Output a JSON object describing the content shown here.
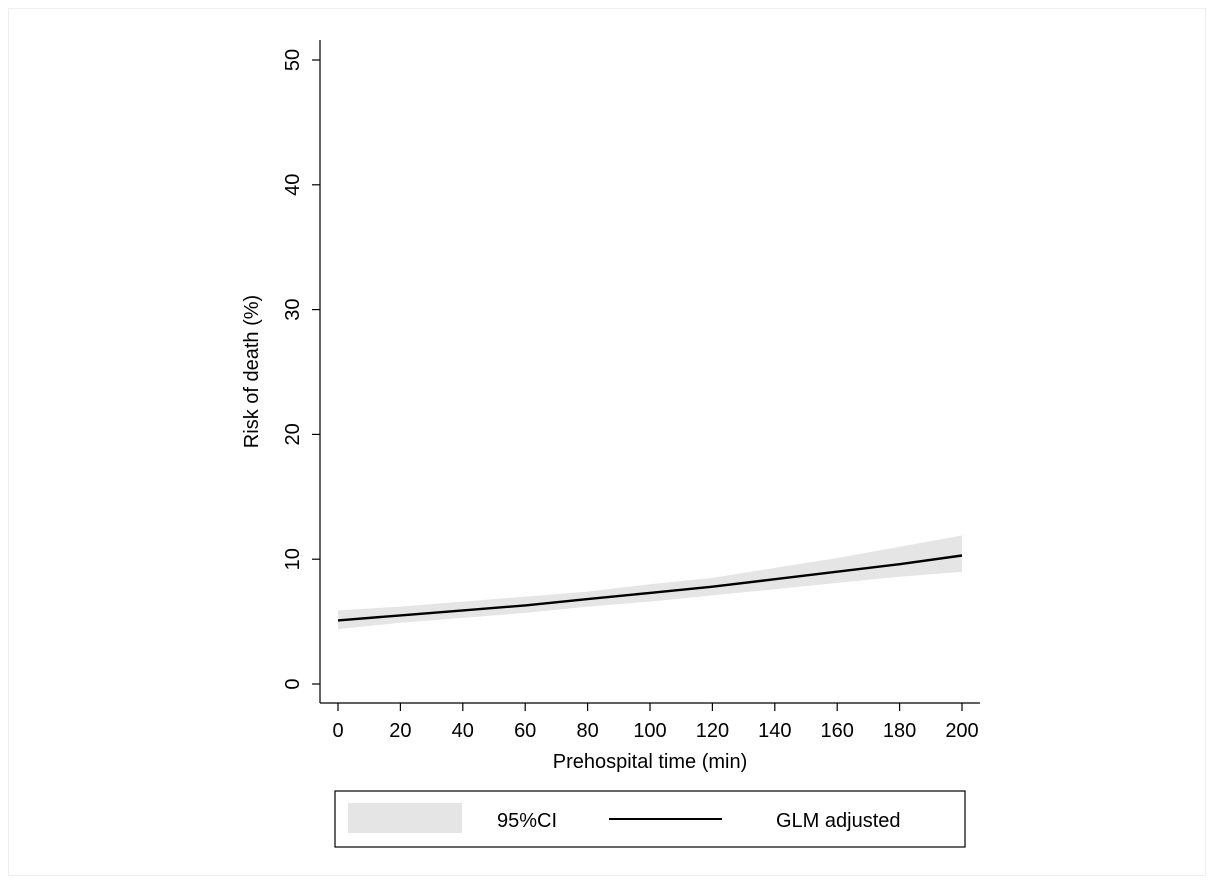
{
  "chart_data": {
    "type": "line",
    "title": "",
    "xlabel": "Prehospital time (min)",
    "ylabel": "Risk of death (%)",
    "xlim": [
      0,
      200
    ],
    "ylim": [
      0,
      50
    ],
    "x_ticks": [
      0,
      20,
      40,
      60,
      80,
      100,
      120,
      140,
      160,
      180,
      200
    ],
    "y_ticks": [
      0,
      10,
      20,
      30,
      40,
      50
    ],
    "grid": false,
    "legend_position": "bottom",
    "x": [
      0,
      20,
      40,
      60,
      80,
      100,
      120,
      140,
      160,
      180,
      200
    ],
    "series": [
      {
        "name": "GLM adjusted",
        "type": "line",
        "color": "#000000",
        "values": [
          5.1,
          5.5,
          5.9,
          6.3,
          6.8,
          7.3,
          7.8,
          8.4,
          9.0,
          9.6,
          10.3
        ]
      },
      {
        "name": "95%CI",
        "type": "area",
        "color": "#e5e5e5",
        "lower": [
          4.4,
          4.9,
          5.3,
          5.7,
          6.2,
          6.6,
          7.1,
          7.6,
          8.1,
          8.6,
          9.0
        ],
        "upper": [
          5.9,
          6.2,
          6.6,
          7.0,
          7.4,
          8.0,
          8.5,
          9.3,
          10.1,
          11.0,
          11.9
        ]
      }
    ]
  }
}
